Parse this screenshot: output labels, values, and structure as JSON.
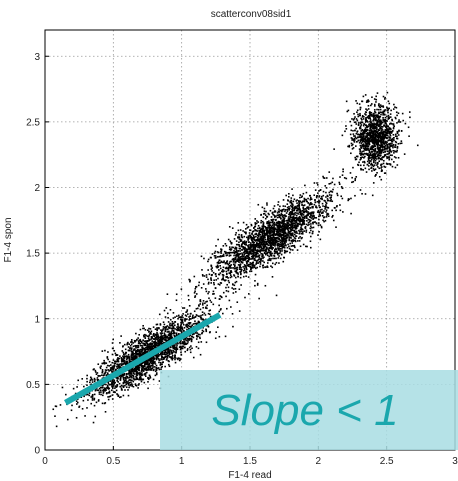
{
  "chart_data": {
    "type": "scatter",
    "title": "scatterconv08sid1",
    "xlabel": "F1-4 read",
    "ylabel": "F1-4 spon",
    "xlim": [
      0,
      3
    ],
    "ylim": [
      0,
      3.2
    ],
    "xticks": [
      0,
      0.5,
      1,
      1.5,
      2,
      2.5,
      3
    ],
    "xtick_labels": [
      "0",
      "0.5",
      "1",
      "1.5",
      "2",
      "2.5",
      "3"
    ],
    "yticks": [
      0,
      0.5,
      1,
      1.5,
      2,
      2.5,
      3
    ],
    "ytick_labels": [
      "0",
      "0.5",
      "1",
      "1.5",
      "2",
      "2.5",
      "3"
    ],
    "grid": true,
    "marker_color": "#000000",
    "clusters": [
      {
        "center": [
          0.75,
          0.72
        ],
        "spread": [
          0.22,
          0.16
        ],
        "n": 2200
      },
      {
        "center": [
          1.65,
          1.62
        ],
        "spread": [
          0.22,
          0.17
        ],
        "n": 2200
      },
      {
        "center": [
          2.42,
          2.38
        ],
        "spread": [
          0.08,
          0.12
        ],
        "n": 1200
      }
    ],
    "fit_line": {
      "x": [
        0.15,
        1.28
      ],
      "y": [
        0.36,
        1.03
      ],
      "color": "#1aa7ad"
    },
    "annotation": {
      "text": "Slope < 1",
      "color": "#1aa7ad",
      "background": "#a8dde3"
    }
  }
}
